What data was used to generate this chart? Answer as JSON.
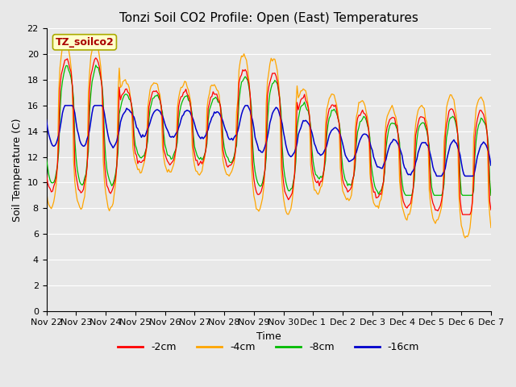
{
  "title": "Tonzi Soil CO2 Profile: Open (East) Temperatures",
  "xlabel": "Time",
  "ylabel": "Soil Temperature (C)",
  "watermark": "TZ_soilco2",
  "ylim": [
    0,
    22
  ],
  "yticks": [
    0,
    2,
    4,
    6,
    8,
    10,
    12,
    14,
    16,
    18,
    20,
    22
  ],
  "series_labels": [
    "-2cm",
    "-4cm",
    "-8cm",
    "-16cm"
  ],
  "series_colors": [
    "#ff0000",
    "#ffa500",
    "#00bb00",
    "#0000cc"
  ],
  "background_color": "#e8e8e8",
  "xtick_labels": [
    "Nov 22",
    "Nov 23",
    "Nov 24",
    "Nov 25",
    "Nov 26",
    "Nov 27",
    "Nov 28",
    "Nov 29",
    "Nov 30",
    "Dec 1",
    "Dec 2",
    "Dec 3",
    "Dec 4",
    "Dec 5",
    "Dec 6",
    "Dec 7"
  ],
  "title_fontsize": 11,
  "axis_label_fontsize": 9,
  "tick_fontsize": 8
}
